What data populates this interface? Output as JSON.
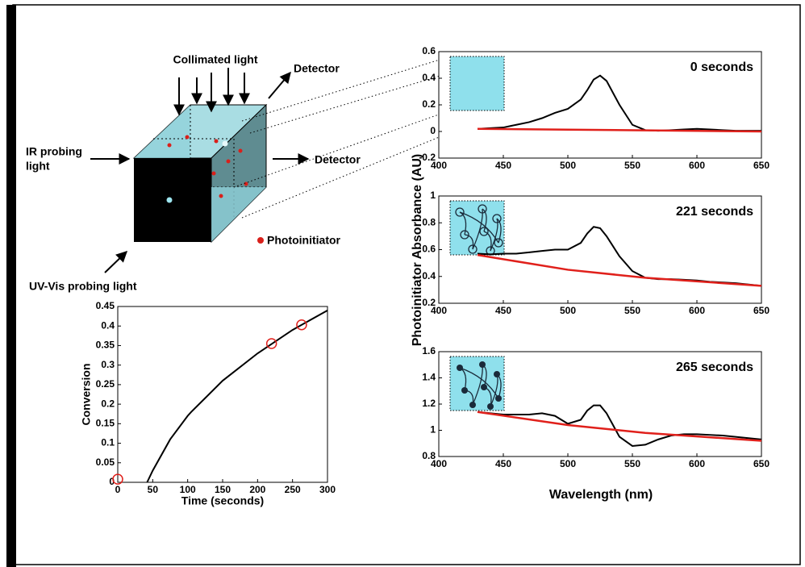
{
  "diagram": {
    "collimated_light": "Collimated light",
    "detector_top": "Detector",
    "detector_right": "Detector",
    "ir_probing_light": [
      "IR probing",
      "light"
    ],
    "photoinitiator": "Photoinitiator",
    "uv_vis_probing_light": "UV-Vis probing light"
  },
  "shared_axes": {
    "ylabel": "Photoinitiator Absorbance (AU)",
    "xlabel": "Wavelength (nm)"
  },
  "chart_data": [
    {
      "type": "line",
      "xlabel": "Time (seconds)",
      "ylabel": "Conversion",
      "xlim": [
        0,
        300
      ],
      "xticks": [
        0,
        50,
        100,
        150,
        200,
        250,
        300
      ],
      "ylim": [
        0,
        0.45
      ],
      "yticks": [
        0,
        0.05,
        0.1,
        0.15,
        0.2,
        0.25,
        0.3,
        0.35,
        0.4,
        0.45
      ],
      "series": [
        {
          "color": "#000000",
          "style": "line",
          "x": [
            42,
            50,
            75,
            100,
            105,
            150,
            200,
            250,
            300
          ],
          "values": [
            0,
            0.03,
            0.11,
            0.17,
            0.18,
            0.26,
            0.33,
            0.39,
            0.44
          ]
        },
        {
          "color": "#e0201b",
          "style": "open-circle",
          "x": [
            0,
            220,
            263
          ],
          "values": [
            0.008,
            0.355,
            0.403
          ]
        }
      ]
    },
    {
      "type": "line",
      "title": "0 seconds",
      "xlim": [
        400,
        650
      ],
      "xticks": [
        400,
        450,
        500,
        550,
        600,
        650
      ],
      "ylim": [
        -0.2,
        0.6
      ],
      "yticks": [
        -0.2,
        0,
        0.2,
        0.4,
        0.6
      ],
      "series": [
        {
          "color": "#000000",
          "style": "line",
          "x": [
            430,
            440,
            450,
            460,
            470,
            480,
            490,
            500,
            510,
            515,
            520,
            525,
            530,
            540,
            550,
            560,
            570,
            580,
            590,
            600,
            610,
            620,
            630,
            640,
            650
          ],
          "values": [
            0.02,
            0.025,
            0.03,
            0.05,
            0.07,
            0.1,
            0.14,
            0.17,
            0.24,
            0.31,
            0.39,
            0.42,
            0.38,
            0.2,
            0.05,
            0.01,
            0.005,
            0.01,
            0.015,
            0.02,
            0.015,
            0.01,
            0.005,
            0.005,
            0.005
          ]
        },
        {
          "color": "#e0201b",
          "style": "line",
          "x": [
            430,
            500,
            560,
            650
          ],
          "values": [
            0.02,
            0.014,
            0.008,
            0
          ]
        }
      ]
    },
    {
      "type": "line",
      "title": "221 seconds",
      "xlim": [
        400,
        650
      ],
      "xticks": [
        400,
        450,
        500,
        550,
        600,
        650
      ],
      "ylim": [
        0.2,
        1
      ],
      "yticks": [
        0.2,
        0.4,
        0.6,
        0.8,
        1
      ],
      "series": [
        {
          "color": "#000000",
          "style": "line",
          "x": [
            430,
            440,
            450,
            460,
            470,
            480,
            490,
            500,
            510,
            515,
            520,
            525,
            530,
            540,
            550,
            560,
            570,
            580,
            590,
            600,
            610,
            620,
            630,
            640,
            650
          ],
          "values": [
            0.57,
            0.565,
            0.57,
            0.57,
            0.58,
            0.59,
            0.6,
            0.6,
            0.65,
            0.72,
            0.77,
            0.76,
            0.7,
            0.55,
            0.44,
            0.39,
            0.38,
            0.38,
            0.375,
            0.37,
            0.36,
            0.355,
            0.35,
            0.34,
            0.33
          ]
        },
        {
          "color": "#e0201b",
          "style": "line",
          "x": [
            430,
            500,
            560,
            650
          ],
          "values": [
            0.56,
            0.45,
            0.39,
            0.33
          ]
        }
      ]
    },
    {
      "type": "line",
      "title": "265 seconds",
      "xlim": [
        400,
        650
      ],
      "xticks": [
        400,
        450,
        500,
        550,
        600,
        650
      ],
      "ylim": [
        0.8,
        1.6
      ],
      "yticks": [
        0.8,
        1,
        1.2,
        1.4,
        1.6
      ],
      "series": [
        {
          "color": "#000000",
          "style": "line",
          "x": [
            430,
            440,
            450,
            460,
            470,
            480,
            490,
            500,
            510,
            515,
            520,
            525,
            530,
            540,
            550,
            560,
            570,
            580,
            590,
            600,
            610,
            620,
            630,
            640,
            650
          ],
          "values": [
            1.14,
            1.13,
            1.12,
            1.12,
            1.12,
            1.13,
            1.11,
            1.05,
            1.08,
            1.15,
            1.19,
            1.19,
            1.13,
            0.95,
            0.88,
            0.89,
            0.93,
            0.96,
            0.97,
            0.97,
            0.965,
            0.96,
            0.95,
            0.94,
            0.93
          ]
        },
        {
          "color": "#e0201b",
          "style": "line",
          "x": [
            430,
            500,
            560,
            650
          ],
          "values": [
            1.14,
            1.04,
            0.98,
            0.92
          ]
        }
      ]
    }
  ]
}
